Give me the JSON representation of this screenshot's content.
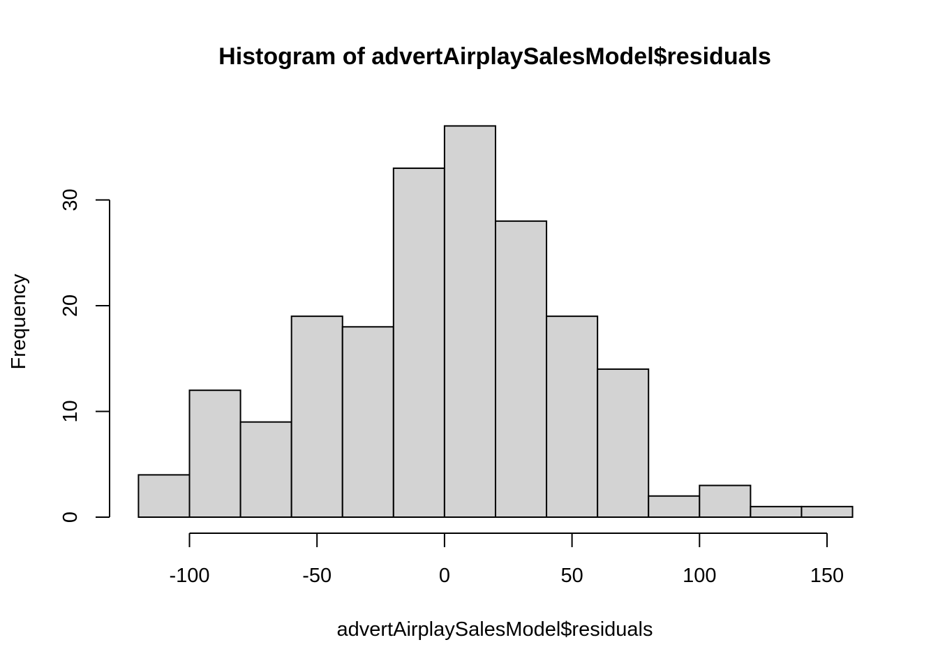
{
  "chart_data": {
    "type": "bar",
    "title": "Histogram of advertAirplaySalesModel$residuals",
    "xlabel": "advertAirplaySalesModel$residuals",
    "ylabel": "Frequency",
    "bins": [
      {
        "from": -120,
        "to": -100,
        "count": 4
      },
      {
        "from": -100,
        "to": -80,
        "count": 12
      },
      {
        "from": -80,
        "to": -60,
        "count": 9
      },
      {
        "from": -60,
        "to": -40,
        "count": 19
      },
      {
        "from": -40,
        "to": -20,
        "count": 18
      },
      {
        "from": -20,
        "to": 0,
        "count": 33
      },
      {
        "from": 0,
        "to": 20,
        "count": 37
      },
      {
        "from": 20,
        "to": 40,
        "count": 28
      },
      {
        "from": 40,
        "to": 60,
        "count": 19
      },
      {
        "from": 60,
        "to": 80,
        "count": 14
      },
      {
        "from": 80,
        "to": 100,
        "count": 2
      },
      {
        "from": 100,
        "to": 120,
        "count": 3
      },
      {
        "from": 120,
        "to": 140,
        "count": 1
      },
      {
        "from": 140,
        "to": 160,
        "count": 1
      }
    ],
    "x_ticks": [
      -100,
      -50,
      0,
      50,
      100,
      150
    ],
    "x_tick_labels": [
      "-100",
      "-50",
      "0",
      "50",
      "100",
      "150"
    ],
    "y_ticks": [
      0,
      10,
      20,
      30
    ],
    "y_tick_labels": [
      "0",
      "10",
      "20",
      "30"
    ],
    "xlim": [
      -120,
      160
    ],
    "ylim": [
      0,
      37
    ],
    "grid": false,
    "colors": {
      "bar_fill": "#d3d3d3",
      "bar_stroke": "#000000"
    }
  }
}
